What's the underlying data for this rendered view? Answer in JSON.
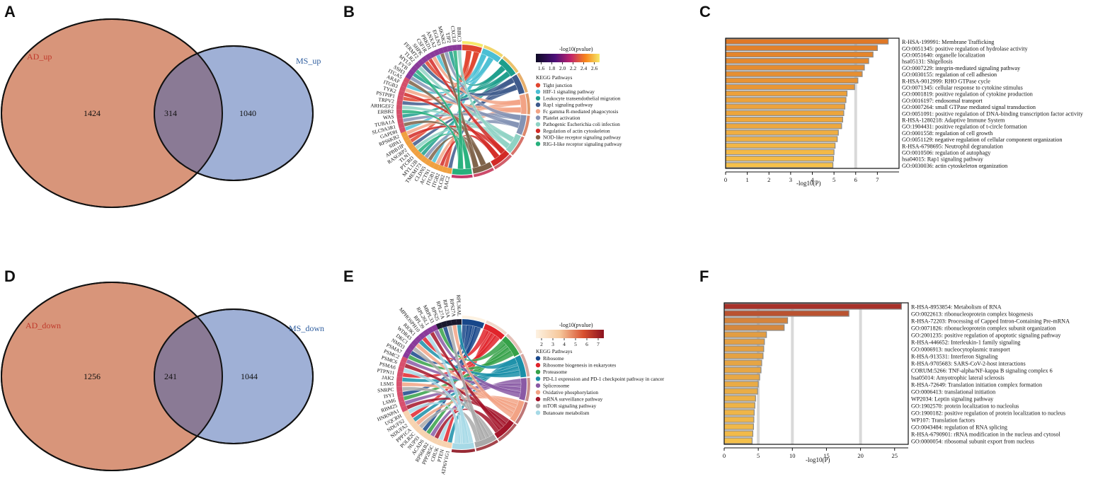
{
  "panels": {
    "A": {
      "letter": "A",
      "left_label": "AD_up",
      "right_label": "MS_up",
      "left_only": "1424",
      "overlap": "314",
      "right_only": "1040"
    },
    "B": {
      "letter": "B",
      "colorbar_title": "-log10(pvalue)",
      "colorbar_ticks": [
        "1.6",
        "1.8",
        "2.0",
        "2.2",
        "2.4",
        "2.6"
      ],
      "legend_title": "KEGG Pathways",
      "pathways": [
        {
          "name": "Tight junction",
          "color": "#e0452f"
        },
        {
          "name": "HIF-1 signaling pathway",
          "color": "#4bbfd4"
        },
        {
          "name": "Leukocyte transendothelial migration",
          "color": "#1c9e8c"
        },
        {
          "name": "Rap1 signaling pathway",
          "color": "#3e5a8c"
        },
        {
          "name": "Fc gamma R-mediated phagocytosis",
          "color": "#f2a385"
        },
        {
          "name": "Platelet activation",
          "color": "#8493b4"
        },
        {
          "name": "Pathogenic Escherichia coli infection",
          "color": "#8fd2c4"
        },
        {
          "name": "Regulation of actin cytoskeleton",
          "color": "#d22a26"
        },
        {
          "name": "NOD-like receptor signaling pathway",
          "color": "#7e6148"
        },
        {
          "name": "RIG-I-like receptor signaling pathway",
          "color": "#27b07c"
        }
      ],
      "genes": [
        "RAC2",
        "PLCB2",
        "ITGB2",
        "ITGB1",
        "ACTN1",
        "CLDN5",
        "TMEM173",
        "MYL12B",
        "PTCRD",
        "TLN1",
        "RASGRP2",
        "APBB1IP",
        "SIPA1",
        "RPS6KB2",
        "GAPDH",
        "SLC9A3R1",
        "TUBA1A",
        "WAS",
        "ERBB2",
        "ARHGEF2",
        "TRPV2",
        "PSTPIP1",
        "TYK2",
        "ITGB3",
        "ARAF",
        "ITGA5",
        "SSH3",
        "FYB",
        "MYL9",
        "TLR2",
        "FERMT2",
        "SHPK",
        "CSF1R",
        "PRKD1",
        "ANXA2",
        "EGLN3",
        "MKNK2",
        "TJP2",
        "CXCL8",
        "BIRC3"
      ]
    },
    "C": {
      "letter": "C",
      "xlabel": "-log10(P)",
      "xticks": [
        "0",
        "1",
        "2",
        "3",
        "4",
        "5",
        "6",
        "7"
      ]
    },
    "D": {
      "letter": "D",
      "left_label": "AD_down",
      "right_label": "MS_down",
      "left_only": "1256",
      "overlap": "241",
      "right_only": "1044"
    },
    "E": {
      "letter": "E",
      "colorbar_title": "-log10(pvalue)",
      "colorbar_ticks": [
        "2",
        "3",
        "4",
        "5",
        "6",
        "7"
      ],
      "legend_title": "KEGG Pathways",
      "pathways": [
        {
          "name": "Ribosome",
          "color": "#17478a"
        },
        {
          "name": "Ribosome biogenesis in eukaryotes",
          "color": "#e0242b"
        },
        {
          "name": "Proteasome",
          "color": "#35a148"
        },
        {
          "name": "PD-L1 expression and PD-1 checkpoint pathway in cancer",
          "color": "#1a8fa8"
        },
        {
          "name": "Spliceosome",
          "color": "#8a5aa5"
        },
        {
          "name": "Oxidative phosphorylation",
          "color": "#f2a385"
        },
        {
          "name": "mRNA surveillance pathway",
          "color": "#a3152a"
        },
        {
          "name": "mTOR signaling pathway",
          "color": "#a9a9a9"
        },
        {
          "name": "Butanoate metabolism",
          "color": "#a6d9e6"
        }
      ],
      "genes": [
        "ATP6V1G1",
        "PTEN",
        "CHUK",
        "PPP2R5C",
        "RPS6KB2",
        "ACADS",
        "NUP93",
        "POLR2C",
        "PPP1CA",
        "NDUFA2",
        "NDUFS2",
        "UQCRH",
        "HNRNPA1",
        "RBM25",
        "LSM6",
        "ISY1",
        "SNRPC",
        "LSM5",
        "JAK2",
        "PTPN11",
        "PSMA6",
        "PSMC6",
        "PSMC2",
        "PSMA7",
        "NMD3",
        "DKC1",
        "WDR43",
        "RIOK1",
        "MPHOSPH10",
        "RPL39",
        "RPL26L1",
        "MRPL33",
        "RPS25",
        "RPL27A",
        "RPL23A",
        "RPS27A",
        "RPL36AL"
      ]
    },
    "F": {
      "letter": "F",
      "xlabel": "-log10(P)",
      "xticks": [
        "0",
        "5",
        "10",
        "15",
        "20",
        "25"
      ]
    }
  },
  "chart_data": [
    {
      "type": "venn",
      "panel": "A",
      "sets": [
        "AD_up",
        "MS_up"
      ],
      "left_only": 1424,
      "overlap": 314,
      "right_only": 1040,
      "colors": {
        "left": "#d8957a",
        "right": "#9fb0d6",
        "overlap": "#8a7a95"
      }
    },
    {
      "type": "chord",
      "panel": "B",
      "title": "KEGG Pathways",
      "colorbar_label": "-log10(pvalue)",
      "colorbar_range": [
        1.5,
        2.7
      ]
    },
    {
      "type": "bar",
      "panel": "C",
      "orientation": "horizontal",
      "xlabel": "-log10(P)",
      "xlim": [
        0,
        8
      ],
      "color_low": "#f5c04a",
      "color_high": "#e07826",
      "categories": [
        "R-HSA-199991: Membrane Trafficking",
        "GO:0051345: positive regulation of hydrolase activity",
        "GO:0051640: organelle localization",
        "hsa05131: Shigellosis",
        "GO:0007229: integrin-mediated signaling pathway",
        "GO:0030155: regulation of cell adhesion",
        "R-HSA-9012999: RHO GTPase cycle",
        "GO:0071345: cellular response to cytokine stimulus",
        "GO:0001819: positive regulation of cytokine production",
        "GO:0016197: endosomal transport",
        "GO:0007264: small GTPase mediated signal transduction",
        "GO:0051091: positive regulation of DNA-binding transcription factor activity",
        "R-HSA-1280218: Adaptive Immune System",
        "GO:1904431: positive regulation of t-circle formation",
        "GO:0001558: regulation of cell growth",
        "GO:0051129: negative regulation of cellular component organization",
        "R-HSA-6798695: Neutrophil degranulation",
        "GO:0010506: regulation of autophagy",
        "hsa04015: Rap1 signaling pathway",
        "GO:0030036: actin cytoskeleton organization"
      ],
      "values": [
        7.5,
        7.0,
        6.8,
        6.6,
        6.4,
        6.3,
        6.1,
        5.95,
        5.6,
        5.55,
        5.5,
        5.45,
        5.4,
        5.35,
        5.2,
        5.15,
        5.05,
        5.0,
        4.98,
        4.95
      ]
    },
    {
      "type": "venn",
      "panel": "D",
      "sets": [
        "AD_down",
        "MS_down"
      ],
      "left_only": 1256,
      "overlap": 241,
      "right_only": 1044,
      "colors": {
        "left": "#d8957a",
        "right": "#9fb0d6",
        "overlap": "#8a7a95"
      }
    },
    {
      "type": "chord",
      "panel": "E",
      "title": "KEGG Pathways",
      "colorbar_label": "-log10(pvalue)",
      "colorbar_range": [
        1.5,
        7.5
      ]
    },
    {
      "type": "bar",
      "panel": "F",
      "orientation": "horizontal",
      "xlabel": "-log10(P)",
      "xlim": [
        0,
        27
      ],
      "color_low": "#f5c04a",
      "color_high": "#a8322a",
      "categories": [
        "R-HSA-8953854: Metabolism of RNA",
        "GO:0022613: ribonucleoprotein complex biogenesis",
        "R-HSA-72203: Processing of Capped Intron-Containing Pre-mRNA",
        "GO:0071826: ribonucleoprotein complex subunit organization",
        "GO:2001235: positive regulation of apoptotic signaling pathway",
        "R-HSA-446652: Interleukin-1 family signaling",
        "GO:0006913: nucleocytoplasmic transport",
        "R-HSA-913531: Interferon Signaling",
        "R-HSA-9705683: SARS-CoV-2-host interactions",
        "CORUM:5266: TNF-alpha/NF-kappa B signaling complex 6",
        "hsa05014: Amyotrophic lateral sclerosis",
        "R-HSA-72649: Translation initiation complex formation",
        "GO:0006413: translational initiation",
        "WP2034: Leptin signaling pathway",
        "GO:1902570: protein localization to nucleolus",
        "GO:1900182: positive regulation of protein localization to nucleus",
        "WP107: Translation factors",
        "GO:0043484: regulation of RNA splicing",
        "R-HSA-6790901: rRNA modification in the nucleus and cytosol",
        "GO:0000054: ribosomal subunit export from nucleus"
      ],
      "values": [
        26,
        18.3,
        9.3,
        8.8,
        6.2,
        5.9,
        5.8,
        5.7,
        5.5,
        5.4,
        5.2,
        5.0,
        4.9,
        4.6,
        4.5,
        4.4,
        4.35,
        4.3,
        4.2,
        4.1
      ]
    }
  ]
}
